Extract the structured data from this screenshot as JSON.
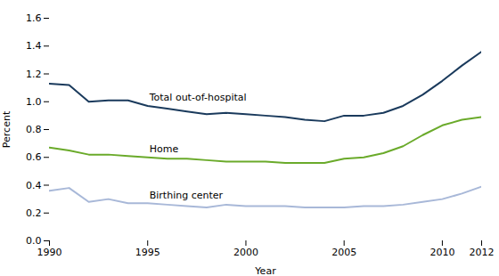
{
  "chart_data": {
    "type": "line",
    "x": [
      1990,
      1991,
      1992,
      1993,
      1994,
      1995,
      1996,
      1997,
      1998,
      1999,
      2000,
      2001,
      2002,
      2003,
      2004,
      2005,
      2006,
      2007,
      2008,
      2009,
      2010,
      2011,
      2012
    ],
    "xlabel": "Year",
    "ylabel": "Percent",
    "xlim": [
      1990,
      2012
    ],
    "xticks": [
      1990,
      1995,
      2000,
      2005,
      2010,
      2012
    ],
    "ylim": [
      0.0,
      1.6
    ],
    "yticks": [
      {
        "value": 0.0,
        "label": "0.0"
      },
      0.2,
      0.4,
      0.6,
      0.8,
      {
        "value": 1.0,
        "label": "1.0"
      },
      1.2,
      1.4,
      1.6
    ],
    "grid": false,
    "series": [
      {
        "name": "Total out-of-hospital",
        "color": "#1a3a5c",
        "values": [
          1.13,
          1.12,
          1.0,
          1.01,
          1.01,
          0.97,
          0.95,
          0.93,
          0.91,
          0.92,
          0.91,
          0.9,
          0.89,
          0.87,
          0.86,
          0.9,
          0.9,
          0.92,
          0.97,
          1.05,
          1.15,
          1.26,
          1.36
        ]
      },
      {
        "name": "Home",
        "color": "#6aaa2a",
        "values": [
          0.67,
          0.65,
          0.62,
          0.62,
          0.61,
          0.6,
          0.59,
          0.59,
          0.58,
          0.57,
          0.57,
          0.57,
          0.56,
          0.56,
          0.56,
          0.59,
          0.6,
          0.63,
          0.68,
          0.76,
          0.83,
          0.87,
          0.89
        ]
      },
      {
        "name": "Birthing center",
        "color": "#a8b8d8",
        "values": [
          0.36,
          0.38,
          0.28,
          0.3,
          0.27,
          0.27,
          0.26,
          0.25,
          0.24,
          0.26,
          0.25,
          0.25,
          0.25,
          0.24,
          0.24,
          0.24,
          0.25,
          0.25,
          0.26,
          0.28,
          0.3,
          0.34,
          0.39
        ]
      }
    ]
  }
}
